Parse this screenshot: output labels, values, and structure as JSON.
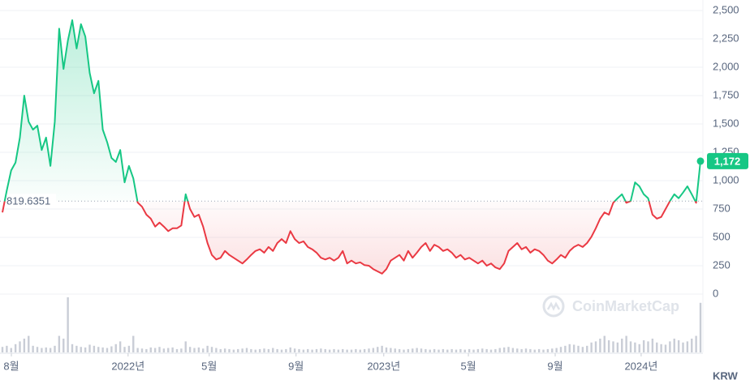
{
  "chart_data": {
    "type": "line",
    "values": [
      720,
      915,
      1090,
      1160,
      1380,
      1750,
      1520,
      1450,
      1485,
      1270,
      1380,
      1130,
      1520,
      2340,
      1985,
      2235,
      2415,
      2165,
      2380,
      2270,
      1950,
      1770,
      1880,
      1450,
      1340,
      1200,
      1165,
      1270,
      985,
      1130,
      1020,
      807,
      770,
      700,
      665,
      595,
      630,
      595,
      555,
      580,
      580,
      605,
      880,
      750,
      680,
      700,
      595,
      450,
      345,
      305,
      320,
      380,
      345,
      320,
      295,
      270,
      305,
      345,
      380,
      395,
      365,
      415,
      380,
      450,
      485,
      450,
      555,
      485,
      450,
      465,
      415,
      395,
      365,
      320,
      305,
      320,
      295,
      320,
      380,
      270,
      295,
      270,
      280,
      255,
      250,
      220,
      200,
      180,
      220,
      295,
      320,
      345,
      295,
      380,
      320,
      365,
      415,
      450,
      380,
      435,
      415,
      380,
      395,
      365,
      320,
      345,
      305,
      320,
      295,
      270,
      295,
      250,
      270,
      235,
      220,
      270,
      380,
      415,
      450,
      395,
      415,
      365,
      395,
      380,
      345,
      295,
      270,
      305,
      345,
      320,
      380,
      415,
      435,
      415,
      450,
      505,
      580,
      665,
      720,
      700,
      805,
      845,
      880,
      805,
      820,
      985,
      950,
      880,
      845,
      700,
      665,
      680,
      750,
      820,
      880,
      845,
      895,
      950,
      880,
      805,
      1172
    ],
    "last_value_label": "1,172",
    "volume": [
      10,
      12,
      8,
      15,
      20,
      25,
      30,
      12,
      10,
      8,
      9,
      8,
      12,
      30,
      25,
      100,
      15,
      12,
      10,
      9,
      14,
      12,
      10,
      9,
      8,
      11,
      15,
      20,
      10,
      12,
      30,
      8,
      7,
      6,
      9,
      8,
      10,
      7,
      8,
      9,
      6,
      7,
      20,
      10,
      8,
      9,
      7,
      12,
      10,
      8,
      6,
      7,
      6,
      5,
      6,
      7,
      8,
      6,
      5,
      6,
      7,
      6,
      8,
      6,
      5,
      6,
      9,
      7,
      6,
      5,
      6,
      5,
      6,
      7,
      6,
      5,
      6,
      5,
      6,
      5,
      5,
      6,
      5,
      6,
      7,
      8,
      10,
      12,
      9,
      8,
      7,
      6,
      5,
      6,
      7,
      8,
      7,
      6,
      5,
      6,
      5,
      6,
      5,
      6,
      5,
      6,
      5,
      6,
      5,
      6,
      7,
      6,
      5,
      6,
      8,
      9,
      10,
      8,
      7,
      6,
      7,
      6,
      5,
      6,
      5,
      6,
      7,
      8,
      10,
      12,
      15,
      14,
      12,
      10,
      12,
      18,
      20,
      25,
      30,
      22,
      20,
      18,
      25,
      30,
      20,
      18,
      15,
      22,
      20,
      25,
      18,
      15,
      14,
      20,
      25,
      22,
      18,
      20,
      25,
      30,
      90
    ],
    "baseline": 819.6351,
    "up_color": "#16c784",
    "down_color": "#ea3943",
    "volume_color": "#c9cdd6",
    "ylim": [
      0,
      2500
    ],
    "yticks": [
      0,
      250,
      500,
      750,
      {
        "value": 1000,
        "label": "1,000"
      },
      {
        "value": 1250,
        "label": "1,250"
      },
      {
        "value": 1500,
        "label": "1,500"
      },
      {
        "value": 1750,
        "label": "1,750"
      },
      {
        "value": 2000,
        "label": "2,000"
      },
      {
        "value": 2250,
        "label": "2,250"
      },
      {
        "value": 2500,
        "label": "2,500"
      }
    ],
    "xticks": [
      {
        "value": 2.05,
        "label": "8월"
      },
      {
        "value": 28.8,
        "label": "2022년"
      },
      {
        "value": 47.4,
        "label": "5월"
      },
      {
        "value": 67.3,
        "label": "9월"
      },
      {
        "value": 87.4,
        "label": "2023년"
      },
      {
        "value": 106.8,
        "label": "5월"
      },
      {
        "value": 126.7,
        "label": "9월"
      },
      {
        "value": 146.4,
        "label": "2024년"
      }
    ],
    "currency": "KRW",
    "watermark": "CoinMarketCap",
    "grid": true
  }
}
